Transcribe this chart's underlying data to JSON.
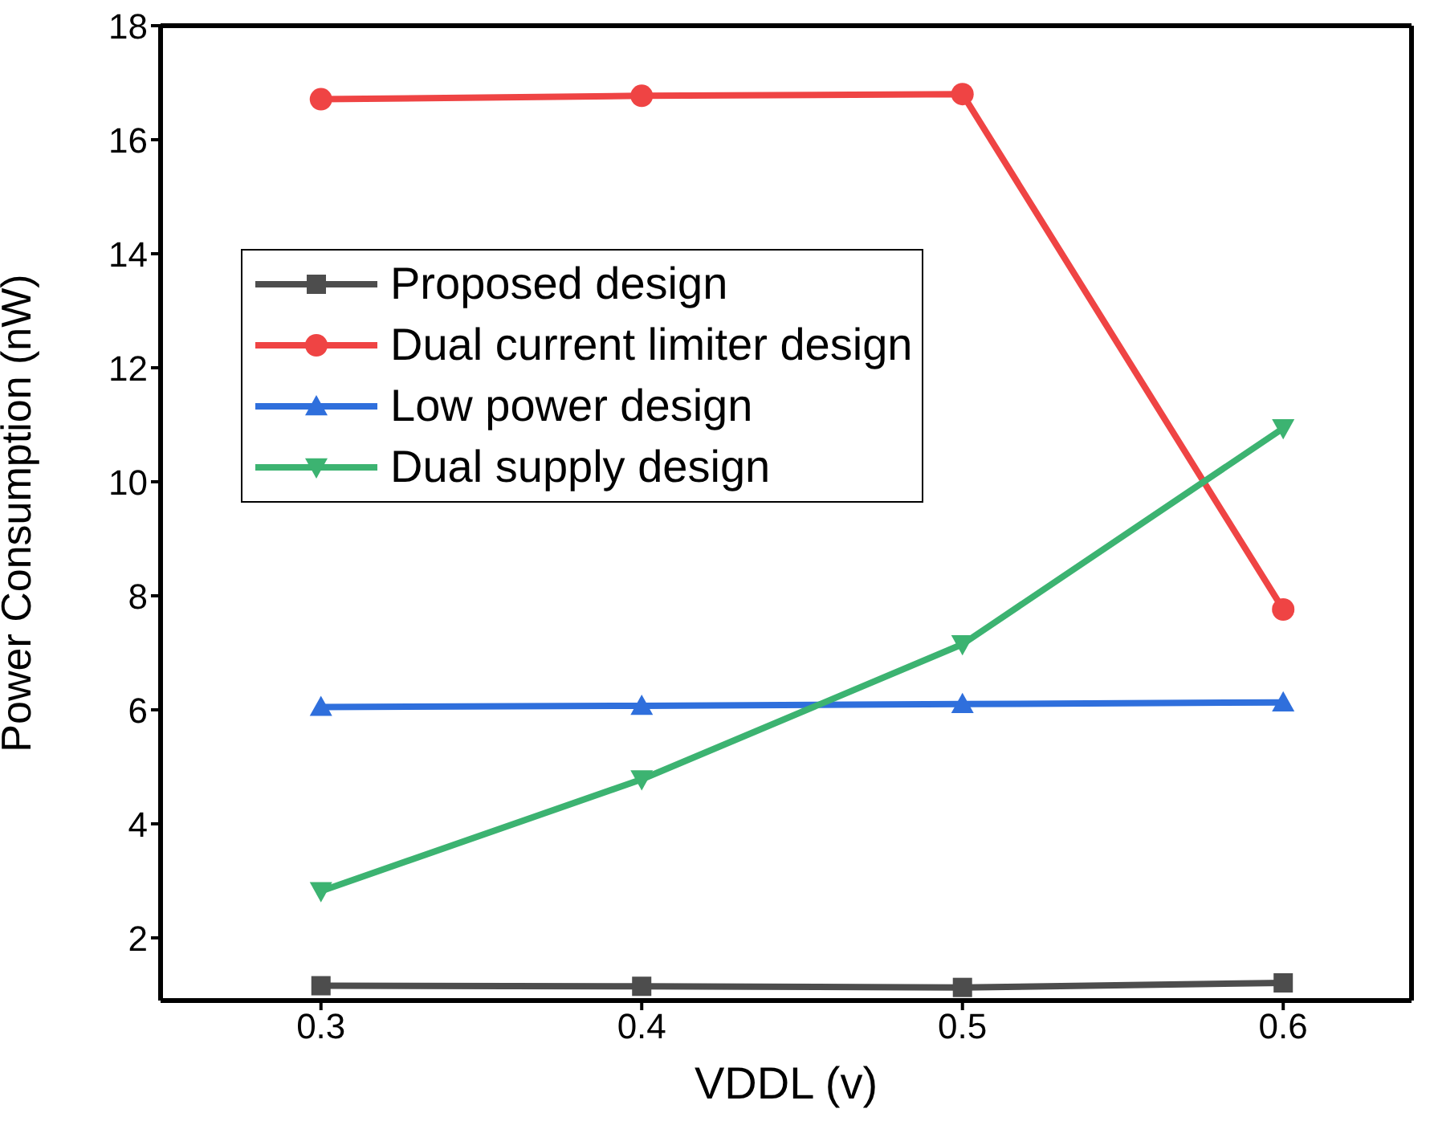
{
  "chart_data": {
    "type": "line",
    "xlabel": "VDDL (v)",
    "ylabel": "Power Consumption (nW)",
    "x": [
      0.3,
      0.4,
      0.5,
      0.6
    ],
    "xlim": [
      0.25,
      0.64
    ],
    "xticks": [
      0.3,
      0.4,
      0.5,
      0.6
    ],
    "ylim": [
      0.9,
      18
    ],
    "yticks": [
      2,
      4,
      6,
      8,
      10,
      12,
      14,
      16,
      18
    ],
    "grid": false,
    "legend": "left",
    "line_style": "solid",
    "series": [
      {
        "name": "Proposed design",
        "color": "#4d4d4d",
        "marker": "square",
        "values": [
          1.16,
          1.15,
          1.13,
          1.21
        ]
      },
      {
        "name": "Dual current limiter design",
        "color": "#ef4444",
        "marker": "circle",
        "values": [
          16.71,
          16.77,
          16.8,
          7.76
        ]
      },
      {
        "name": "Low power design",
        "color": "#2f6fdc",
        "marker": "triangle",
        "values": [
          6.05,
          6.07,
          6.1,
          6.13
        ]
      },
      {
        "name": "Dual supply design",
        "color": "#3cb371",
        "marker": "triangle-down",
        "values": [
          2.82,
          4.78,
          7.15,
          10.94
        ]
      }
    ]
  }
}
